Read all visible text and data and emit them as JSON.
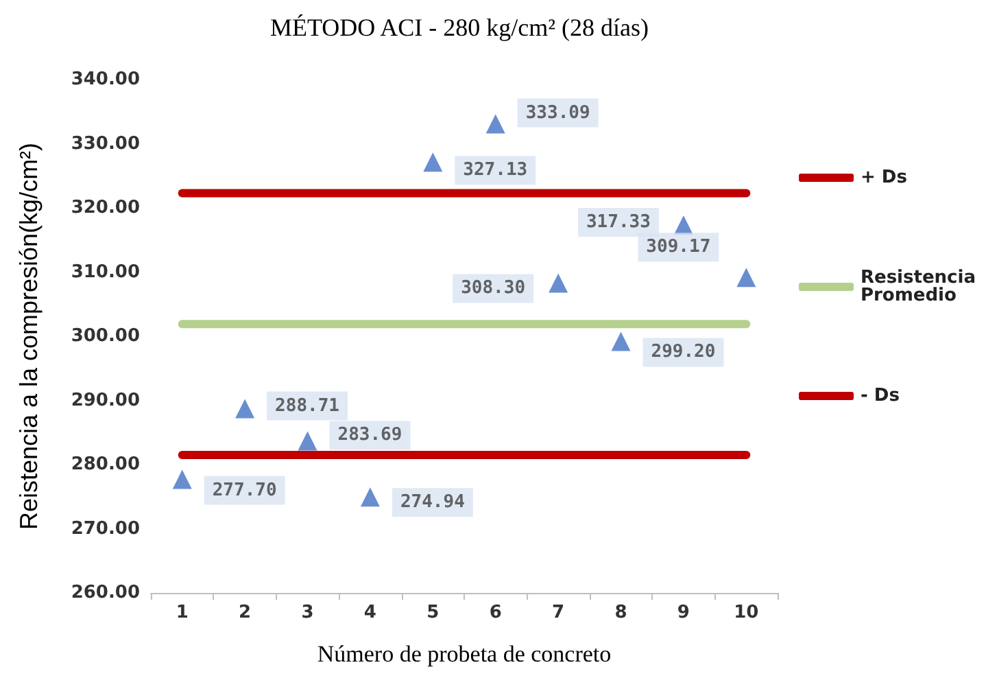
{
  "chart_data": {
    "type": "scatter",
    "title": "MÉTODO ACI - 280 kg/cm² (28 días)",
    "xlabel": "Número de probeta de concreto",
    "ylabel": "Reistencia a la compresión(kg/cm²)",
    "categories": [
      "1",
      "2",
      "3",
      "4",
      "5",
      "6",
      "7",
      "8",
      "9",
      "10"
    ],
    "series": [
      {
        "marker": "triangle",
        "color": "#4472c4",
        "values": [
          277.7,
          288.71,
          283.69,
          274.94,
          327.13,
          333.09,
          308.3,
          299.2,
          317.33,
          309.17
        ]
      },
      {
        "type": "line",
        "marker": "none",
        "name": "+ Ds",
        "color": "#c00000",
        "values": [
          322.3,
          322.3,
          322.3,
          322.3,
          322.3,
          322.3,
          322.3,
          322.3,
          322.3,
          322.3
        ]
      },
      {
        "type": "line",
        "marker": "none",
        "name": "Resistencia Promedio",
        "color": "#b5d08c",
        "values": [
          301.9,
          301.9,
          301.9,
          301.9,
          301.9,
          301.9,
          301.9,
          301.9,
          301.9,
          301.9
        ]
      },
      {
        "type": "line",
        "marker": "none",
        "name": "- Ds",
        "color": "#c00000",
        "values": [
          281.5,
          281.5,
          281.5,
          281.5,
          281.5,
          281.5,
          281.5,
          281.5,
          281.5,
          281.5
        ]
      }
    ],
    "ylim": [
      260,
      340
    ],
    "yticks": [
      {
        "value": 260,
        "label": "260.00"
      },
      {
        "value": 270,
        "label": "270.00"
      },
      {
        "value": 280,
        "label": "280.00"
      },
      {
        "value": 290,
        "label": "290.00"
      },
      {
        "value": 300,
        "label": "300.00"
      },
      {
        "value": 310,
        "label": "310.00"
      },
      {
        "value": 320,
        "label": "320.00"
      },
      {
        "value": 330,
        "label": "330.00"
      },
      {
        "value": 340,
        "label": "340.00"
      }
    ],
    "grid": false,
    "legend": "right",
    "line_style": "solid",
    "value_labels": [
      "277.70",
      "288.71",
      "283.69",
      "274.94",
      "327.13",
      "333.09",
      "308.30",
      "299.20",
      "317.33",
      "309.17"
    ]
  }
}
